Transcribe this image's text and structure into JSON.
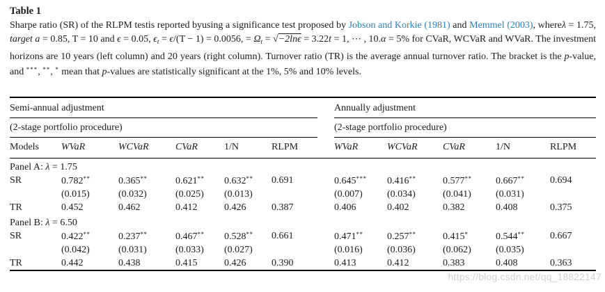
{
  "colors": {
    "link": "#2e7eb8",
    "rule": "#000000",
    "watermark": "#ccd0d5"
  },
  "page": {
    "watermark": "https://blog.csdn.net/qq_18822147"
  },
  "table": {
    "title": "Table 1",
    "caption_segments": [
      {
        "s": "plain",
        "t": "Sharpe ratio (SR) of the RLPM testis reported byusing a significance test proposed by "
      },
      {
        "s": "link",
        "t": "Jobson and Korkie (1981)"
      },
      {
        "s": "plain",
        "t": " and "
      },
      {
        "s": "link",
        "t": "Memmel (2003)"
      },
      {
        "s": "plain",
        "t": ", where"
      },
      {
        "s": "italic",
        "t": "λ"
      },
      {
        "s": "plain",
        "t": " = 1.75, "
      },
      {
        "s": "italic",
        "t": "target a"
      },
      {
        "s": "plain",
        "t": " = 0.85, T = 10 and "
      },
      {
        "s": "italic",
        "t": "ϵ"
      },
      {
        "s": "plain",
        "t": " = 0.05, "
      },
      {
        "s": "italic",
        "t": "ϵ"
      },
      {
        "s": "sub",
        "t": "t"
      },
      {
        "s": "plain",
        "t": " = "
      },
      {
        "s": "italic",
        "t": "ϵ"
      },
      {
        "s": "plain",
        "t": "/(T − 1) = 0.0056, = "
      },
      {
        "s": "italic",
        "t": "Ω"
      },
      {
        "s": "sub",
        "t": "t"
      },
      {
        "s": "plain",
        "t": " = "
      },
      {
        "s": "sqrt",
        "t": "−2lnϵ"
      },
      {
        "s": "plain",
        "t": " = 3.22"
      },
      {
        "s": "italic",
        "t": "t"
      },
      {
        "s": "plain",
        "t": " = 1, ⋯ , 10."
      },
      {
        "s": "italic",
        "t": "α"
      },
      {
        "s": "plain",
        "t": " = 5% for CVaR, WCVaR and WVaR. The investment horizons are 10 years (left column) and 20 years (right column). Turnover ratio (TR) is the average annual turnover ratio. The bracket is the "
      },
      {
        "s": "italic",
        "t": "p"
      },
      {
        "s": "plain",
        "t": "-value, and "
      },
      {
        "s": "stars",
        "t": "***"
      },
      {
        "s": "plain",
        "t": ", "
      },
      {
        "s": "stars",
        "t": "**"
      },
      {
        "s": "plain",
        "t": ", "
      },
      {
        "s": "stars",
        "t": "*"
      },
      {
        "s": "plain",
        "t": " mean that "
      },
      {
        "s": "italic",
        "t": "p"
      },
      {
        "s": "plain",
        "t": "-values are statistically significant at the 1%, 5% and 10% levels."
      }
    ],
    "groups": [
      {
        "title": "Semi-annual adjustment",
        "subtitle": "(2-stage portfolio procedure)"
      },
      {
        "title": "Annually adjustment",
        "subtitle": "(2-stage portfolio procedure)"
      }
    ],
    "row_header_label": "Models",
    "columns": [
      {
        "label": "WVaR",
        "italic": true
      },
      {
        "label": "WCVaR",
        "italic": true
      },
      {
        "label": "CVaR",
        "italic": true
      },
      {
        "label": "1/N",
        "italic": false
      },
      {
        "label": "RLPM",
        "italic": false
      }
    ],
    "panels": [
      {
        "label_segments": [
          {
            "s": "plain",
            "t": "Panel A: "
          },
          {
            "s": "italic",
            "t": "λ"
          },
          {
            "s": "plain",
            "t": " = 1.75"
          }
        ],
        "rows": [
          {
            "label": "SR",
            "left": [
              "0.782**",
              "0.365**",
              "0.621**",
              "0.632**",
              "0.691"
            ],
            "right": [
              "0.645***",
              "0.416**",
              "0.577**",
              "0.667**",
              "0.694"
            ]
          },
          {
            "label": "",
            "left": [
              "(0.015)",
              "(0.032)",
              "(0.025)",
              "(0.013)",
              ""
            ],
            "right": [
              "(0.007)",
              "(0.034)",
              "(0.041)",
              "(0.031)",
              ""
            ]
          },
          {
            "label": "TR",
            "left": [
              "0.452",
              "0.462",
              "0.412",
              "0.426",
              "0.387"
            ],
            "right": [
              "0.406",
              "0.402",
              "0.382",
              "0.408",
              "0.375"
            ]
          }
        ]
      },
      {
        "label_segments": [
          {
            "s": "plain",
            "t": "Panel B: "
          },
          {
            "s": "italic",
            "t": "λ"
          },
          {
            "s": "plain",
            "t": " = 6.50"
          }
        ],
        "rows": [
          {
            "label": "SR",
            "left": [
              "0.422**",
              "0.237**",
              "0.467**",
              "0.528**",
              "0.661"
            ],
            "right": [
              "0.471**",
              "0.257**",
              "0.415*",
              "0.544**",
              "0.667"
            ]
          },
          {
            "label": "",
            "left": [
              "(0.042)",
              "(0.031)",
              "(0.033)",
              "(0.027)",
              ""
            ],
            "right": [
              "(0.016)",
              "(0.036)",
              "(0.062)",
              "(0.035)",
              ""
            ]
          },
          {
            "label": "TR",
            "left": [
              "0.442",
              "0.438",
              "0.415",
              "0.426",
              "0.390"
            ],
            "right": [
              "0.413",
              "0.412",
              "0.383",
              "0.408",
              "0.363"
            ]
          }
        ]
      }
    ]
  }
}
